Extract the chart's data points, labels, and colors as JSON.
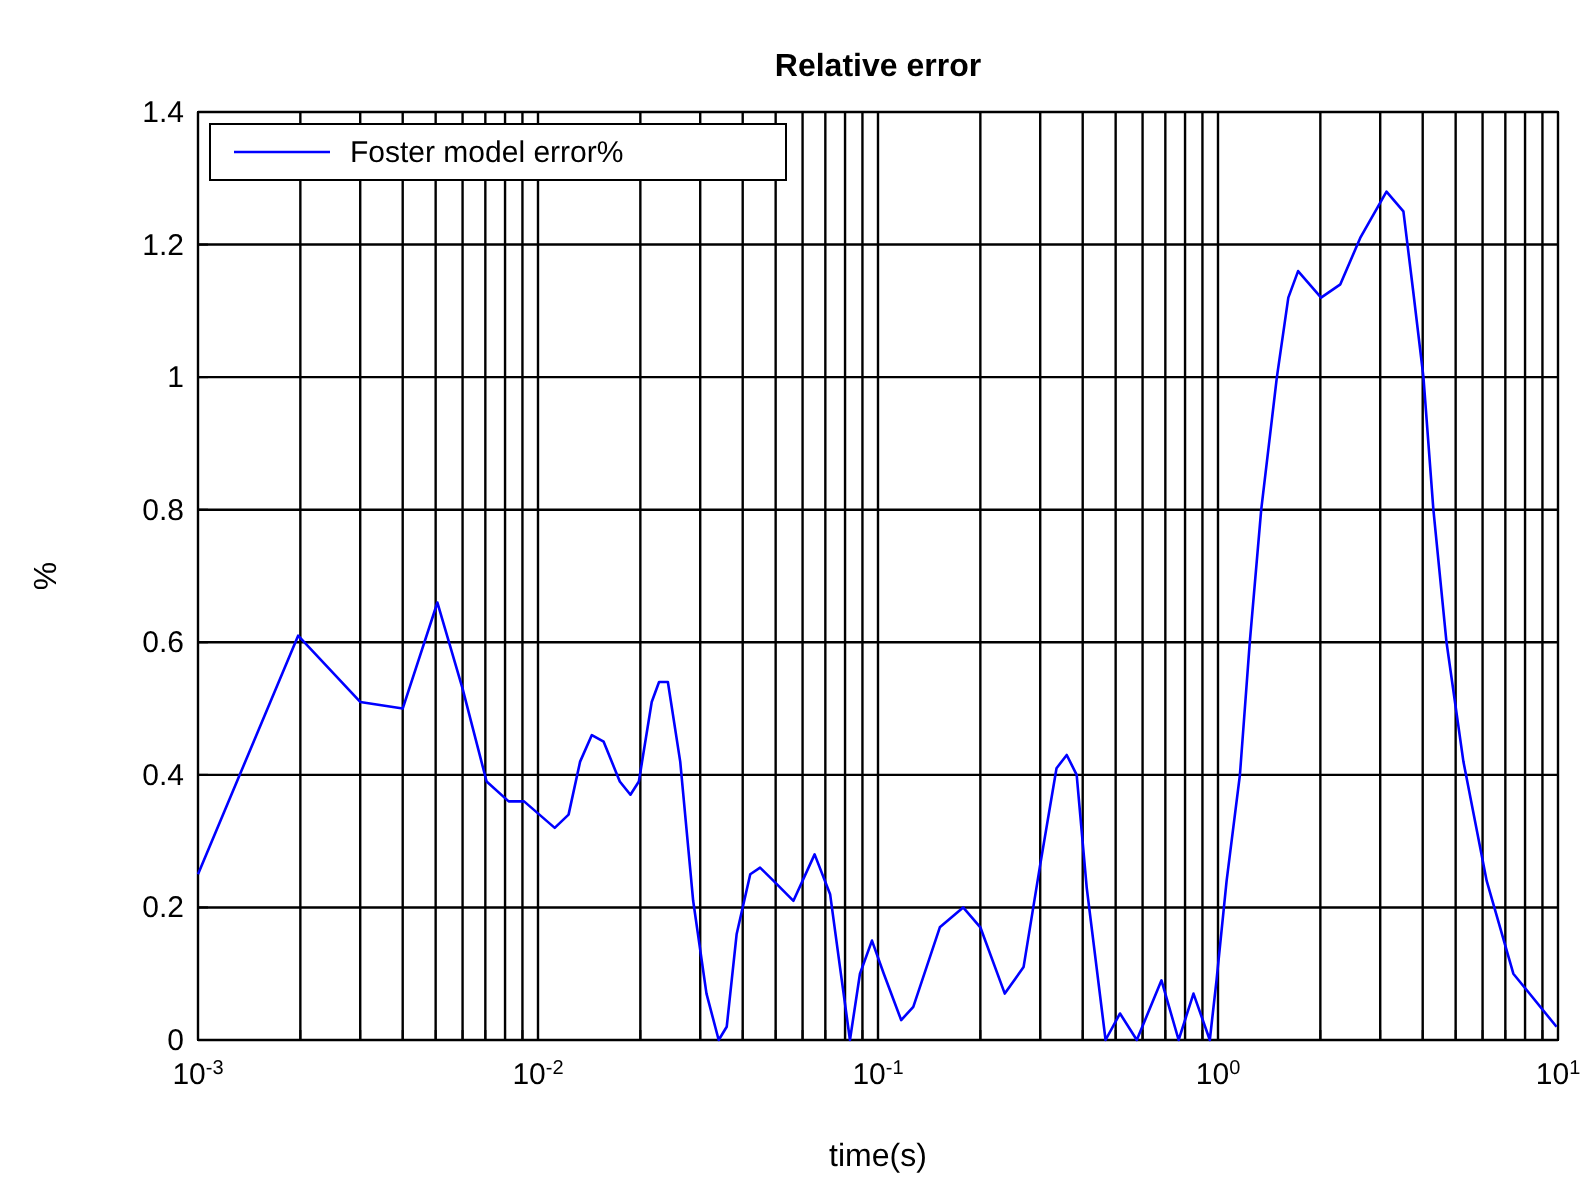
{
  "chart_data": {
    "type": "line",
    "title": "Relative error",
    "xlabel": "time(s)",
    "ylabel": "%",
    "log": "x",
    "grid": true,
    "legend": "top left",
    "marker": "none",
    "line_style": "solid",
    "xlim": [
      0.001,
      10
    ],
    "ylim": [
      0,
      1.4
    ],
    "xticks": [
      {
        "value": 0.001,
        "label": "10$^{-3}$"
      },
      {
        "value": 0.002,
        "label": null
      },
      {
        "value": 0.003,
        "label": null
      },
      {
        "value": 0.004,
        "label": null
      },
      {
        "value": 0.005,
        "label": null
      },
      {
        "value": 0.006,
        "label": null
      },
      {
        "value": 0.007,
        "label": null
      },
      {
        "value": 0.008,
        "label": null
      },
      {
        "value": 0.009,
        "label": null
      },
      {
        "value": 0.01,
        "label": "10$^{-2}$"
      },
      {
        "value": 0.02,
        "label": null
      },
      {
        "value": 0.03,
        "label": null
      },
      {
        "value": 0.04,
        "label": null
      },
      {
        "value": 0.05,
        "label": null
      },
      {
        "value": 0.06,
        "label": null
      },
      {
        "value": 0.07,
        "label": null
      },
      {
        "value": 0.08,
        "label": null
      },
      {
        "value": 0.09,
        "label": null
      },
      {
        "value": 0.1,
        "label": "10$^{-1}$"
      },
      {
        "value": 0.2,
        "label": null
      },
      {
        "value": 0.3,
        "label": null
      },
      {
        "value": 0.4,
        "label": null
      },
      {
        "value": 0.5,
        "label": null
      },
      {
        "value": 0.6,
        "label": null
      },
      {
        "value": 0.7,
        "label": null
      },
      {
        "value": 0.8,
        "label": null
      },
      {
        "value": 0.9,
        "label": null
      },
      {
        "value": 1,
        "label": "10$^{0}$"
      },
      {
        "value": 2,
        "label": null
      },
      {
        "value": 3,
        "label": null
      },
      {
        "value": 4,
        "label": null
      },
      {
        "value": 5,
        "label": null
      },
      {
        "value": 6,
        "label": null
      },
      {
        "value": 7,
        "label": null
      },
      {
        "value": 8,
        "label": null
      },
      {
        "value": 9,
        "label": null
      },
      {
        "value": 10,
        "label": "10$^{1}$"
      }
    ],
    "yticks": [
      0,
      0.2,
      0.4,
      0.6,
      0.8,
      1,
      1.2,
      1.4
    ],
    "series": [
      {
        "name": "Foster model error%",
        "color": "#0000ff",
        "x": [
          0.001,
          0.00197,
          0.003,
          0.004,
          0.00506,
          0.006,
          0.00706,
          0.0082,
          0.0091,
          0.0112,
          0.0123,
          0.0133,
          0.0144,
          0.0156,
          0.0174,
          0.0187,
          0.0198,
          0.0216,
          0.0227,
          0.0241,
          0.0262,
          0.0286,
          0.0313,
          0.034,
          0.0359,
          0.0384,
          0.0421,
          0.045,
          0.0493,
          0.0564,
          0.0651,
          0.0723,
          0.0773,
          0.0827,
          0.0885,
          0.096,
          0.104,
          0.117,
          0.127,
          0.152,
          0.178,
          0.2,
          0.236,
          0.268,
          0.299,
          0.335,
          0.359,
          0.384,
          0.411,
          0.467,
          0.515,
          0.577,
          0.682,
          0.766,
          0.847,
          0.946,
          0.99,
          1.06,
          1.16,
          1.24,
          1.34,
          1.49,
          1.61,
          1.72,
          2.01,
          2.29,
          2.62,
          3.13,
          3.51,
          3.75,
          4.02,
          4.3,
          4.7,
          5.27,
          6.17,
          7.39,
          9.9
        ],
        "values": [
          0.25,
          0.61,
          0.51,
          0.5,
          0.66,
          0.53,
          0.39,
          0.36,
          0.36,
          0.32,
          0.34,
          0.42,
          0.46,
          0.45,
          0.39,
          0.37,
          0.39,
          0.51,
          0.54,
          0.54,
          0.42,
          0.21,
          0.07,
          0,
          0.02,
          0.16,
          0.25,
          0.26,
          0.24,
          0.21,
          0.28,
          0.22,
          0.11,
          0,
          0.1,
          0.15,
          0.1,
          0.03,
          0.05,
          0.17,
          0.2,
          0.17,
          0.07,
          0.11,
          0.26,
          0.41,
          0.43,
          0.4,
          0.23,
          0,
          0.04,
          0,
          0.09,
          0,
          0.07,
          0,
          0.09,
          0.24,
          0.4,
          0.6,
          0.8,
          1,
          1.12,
          1.16,
          1.12,
          1.14,
          1.21,
          1.28,
          1.25,
          1.13,
          1,
          0.8,
          0.6,
          0.42,
          0.24,
          0.1,
          0.02
        ]
      }
    ]
  }
}
